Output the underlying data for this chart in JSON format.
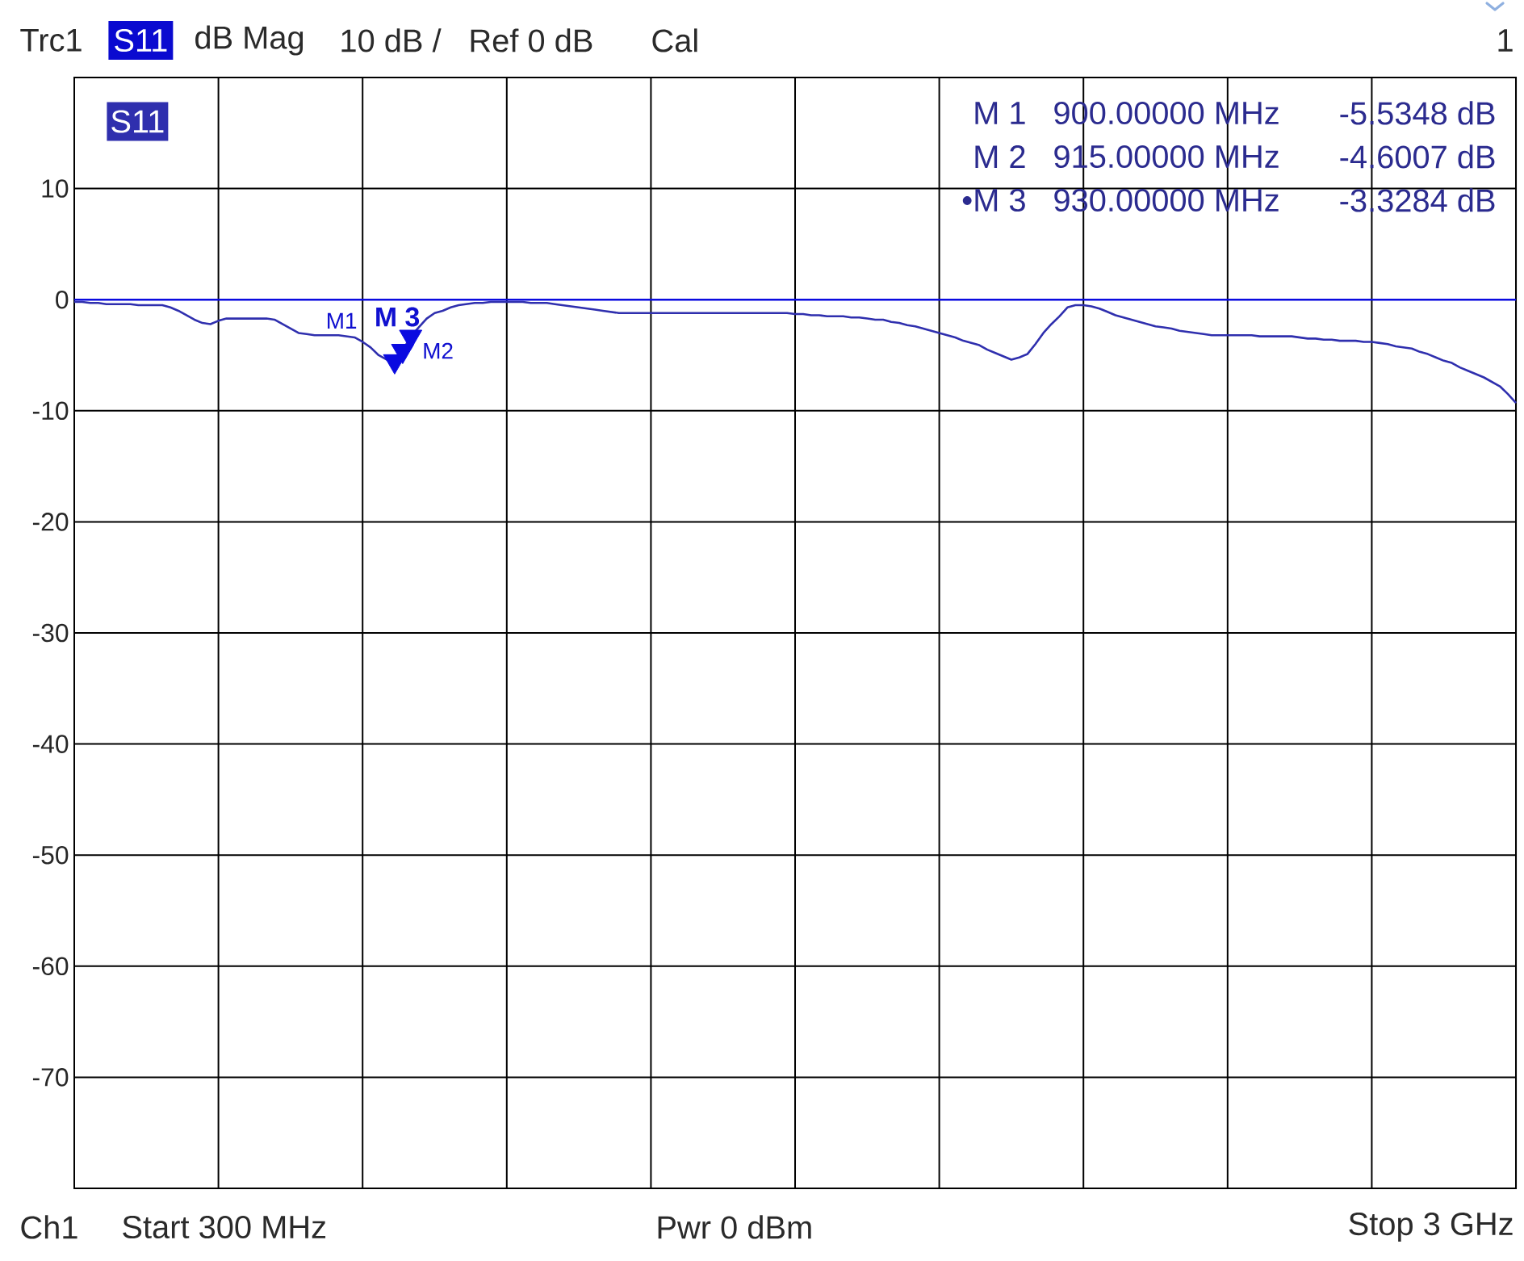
{
  "chart_data": {
    "type": "line",
    "categories": [
      null,
      null,
      null,
      null,
      null,
      null,
      null,
      null,
      null,
      null,
      null,
      null,
      null,
      null,
      null,
      null,
      null,
      null,
      null,
      null,
      null,
      null,
      null,
      null,
      null,
      null,
      null,
      null,
      null,
      null,
      null,
      null,
      null,
      null,
      null,
      null,
      null,
      null,
      null,
      null,
      null,
      null,
      null,
      null,
      null,
      null,
      null,
      null,
      null,
      null,
      null,
      null,
      null,
      null,
      null,
      null,
      null,
      null,
      null,
      null,
      null,
      null,
      null,
      null,
      null,
      null,
      null,
      null,
      null,
      null,
      null,
      null,
      null,
      null,
      null,
      null,
      null,
      null,
      null,
      null,
      null,
      null,
      null,
      null,
      null,
      null,
      null,
      null,
      null,
      null,
      null,
      null,
      null,
      null,
      null,
      null,
      null,
      null,
      null,
      null,
      null,
      null,
      null,
      null,
      null,
      null,
      null,
      null,
      null,
      null,
      null,
      null,
      null,
      null,
      null,
      null,
      null,
      null,
      null,
      null,
      null,
      null,
      null,
      null,
      null,
      null,
      null,
      null,
      null,
      null,
      null,
      null,
      null,
      null,
      null,
      null,
      null,
      null,
      null,
      null,
      null,
      null,
      null,
      null,
      null,
      null,
      null,
      null,
      null,
      null,
      null,
      null,
      null,
      null,
      null,
      null,
      null,
      null,
      null,
      null,
      null,
      null,
      null,
      null,
      null,
      null,
      null,
      null,
      null,
      null,
      null,
      null,
      null,
      null,
      null,
      null,
      null,
      null,
      null,
      null,
      null
    ],
    "ylim": [
      -80,
      20
    ],
    "yticks": [
      10,
      0,
      -10,
      -20,
      -30,
      -40,
      -50,
      -60,
      -70
    ],
    "tick_labels": "y",
    "grid": true,
    "legend": "top left",
    "series": [
      {
        "name": "S11",
        "color": "#2f2fae",
        "values": [
          -0.2,
          -0.2,
          -0.3,
          -0.3,
          -0.4,
          -0.4,
          -0.4,
          -0.4,
          -0.5,
          -0.5,
          -0.5,
          -0.5,
          -0.7,
          -1.0,
          -1.4,
          -1.8,
          -2.1,
          -2.2,
          -1.9,
          -1.7,
          -1.7,
          -1.7,
          -1.7,
          -1.7,
          -1.7,
          -1.8,
          -2.2,
          -2.6,
          -3.0,
          -3.1,
          -3.2,
          -3.2,
          -3.2,
          -3.2,
          -3.3,
          -3.4,
          -3.8,
          -4.3,
          -5.0,
          -5.4,
          -5.5348,
          -4.6007,
          -3.3284,
          -2.5,
          -1.7,
          -1.2,
          -1.0,
          -0.7,
          -0.5,
          -0.4,
          -0.3,
          -0.3,
          -0.2,
          -0.2,
          -0.2,
          -0.2,
          -0.2,
          -0.3,
          -0.3,
          -0.3,
          -0.4,
          -0.5,
          -0.6,
          -0.7,
          -0.8,
          -0.9,
          -1.0,
          -1.1,
          -1.2,
          -1.2,
          -1.2,
          -1.2,
          -1.2,
          -1.2,
          -1.2,
          -1.2,
          -1.2,
          -1.2,
          -1.2,
          -1.2,
          -1.2,
          -1.2,
          -1.2,
          -1.2,
          -1.2,
          -1.2,
          -1.2,
          -1.2,
          -1.2,
          -1.2,
          -1.3,
          -1.3,
          -1.4,
          -1.4,
          -1.5,
          -1.5,
          -1.5,
          -1.6,
          -1.6,
          -1.7,
          -1.8,
          -1.8,
          -2.0,
          -2.1,
          -2.3,
          -2.4,
          -2.6,
          -2.8,
          -3.0,
          -3.2,
          -3.4,
          -3.7,
          -3.9,
          -4.1,
          -4.5,
          -4.8,
          -5.1,
          -5.4,
          -5.2,
          -4.9,
          -4.0,
          -3.0,
          -2.2,
          -1.5,
          -0.7,
          -0.5,
          -0.5,
          -0.6,
          -0.8,
          -1.1,
          -1.4,
          -1.6,
          -1.8,
          -2.0,
          -2.2,
          -2.4,
          -2.5,
          -2.6,
          -2.8,
          -2.9,
          -3.0,
          -3.1,
          -3.2,
          -3.2,
          -3.2,
          -3.2,
          -3.2,
          -3.2,
          -3.3,
          -3.3,
          -3.3,
          -3.3,
          -3.3,
          -3.4,
          -3.5,
          -3.5,
          -3.6,
          -3.6,
          -3.7,
          -3.7,
          -3.7,
          -3.8,
          -3.8,
          -3.9,
          -4.0,
          -4.2,
          -4.3,
          -4.4,
          -4.7,
          -4.9,
          -5.2,
          -5.5,
          -5.7,
          -6.1,
          -6.4,
          -6.7,
          -7.0,
          -7.4,
          -7.8,
          -8.5,
          -9.3
        ]
      },
      {
        "type": "scatter",
        "marker": "triangle",
        "color": "#0a0ae0",
        "values": [
          null,
          null,
          null,
          null,
          null,
          null,
          null,
          null,
          null,
          null,
          null,
          null,
          null,
          null,
          null,
          null,
          null,
          null,
          null,
          null,
          null,
          null,
          null,
          null,
          null,
          null,
          null,
          null,
          null,
          null,
          null,
          null,
          null,
          null,
          null,
          null,
          null,
          null,
          null,
          null,
          -5.5348,
          -4.6007,
          -3.3284,
          null,
          null,
          null,
          null,
          null,
          null,
          null,
          null,
          null,
          null,
          null,
          null,
          null,
          null,
          null,
          null,
          null,
          null,
          null,
          null,
          null,
          null,
          null,
          null,
          null,
          null,
          null,
          null,
          null,
          null,
          null,
          null,
          null,
          null,
          null,
          null,
          null,
          null,
          null,
          null,
          null,
          null,
          null,
          null,
          null,
          null,
          null,
          null,
          null,
          null,
          null,
          null,
          null,
          null,
          null,
          null,
          null,
          null,
          null,
          null,
          null,
          null,
          null,
          null,
          null,
          null,
          null,
          null,
          null,
          null,
          null,
          null,
          null,
          null,
          null,
          null,
          null,
          null,
          null,
          null,
          null,
          null,
          null,
          null,
          null,
          null,
          null,
          null,
          null,
          null,
          null,
          null,
          null,
          null,
          null,
          null,
          null,
          null,
          null,
          null,
          null,
          null,
          null,
          null,
          null,
          null,
          null,
          null,
          null,
          null,
          null,
          null,
          null,
          null,
          null,
          null,
          null,
          null,
          null,
          null,
          null,
          null,
          null,
          null,
          null,
          null,
          null,
          null,
          null,
          null,
          null,
          null,
          null,
          null,
          null,
          null,
          null,
          null
        ]
      }
    ],
    "ref_lines": [
      {
        "axis": "y",
        "value": 0,
        "color": "#0a0ae0"
      }
    ],
    "annotations": [
      "Trc1",
      "S11",
      "dB Mag",
      "10 dB /",
      "Ref 0 dB",
      "Cal",
      "1",
      "Ch1",
      "Start 300 MHz",
      "Pwr 0 dBm",
      "Stop 3 GHz",
      "M 1",
      "900.00000 MHz",
      "-5.5348 dB",
      "M 2",
      "915.00000 MHz",
      "-4.6007 dB",
      "•M 3",
      "930.00000 MHz",
      "-3.3284 dB",
      "M1",
      "M2",
      "M 3"
    ]
  }
}
